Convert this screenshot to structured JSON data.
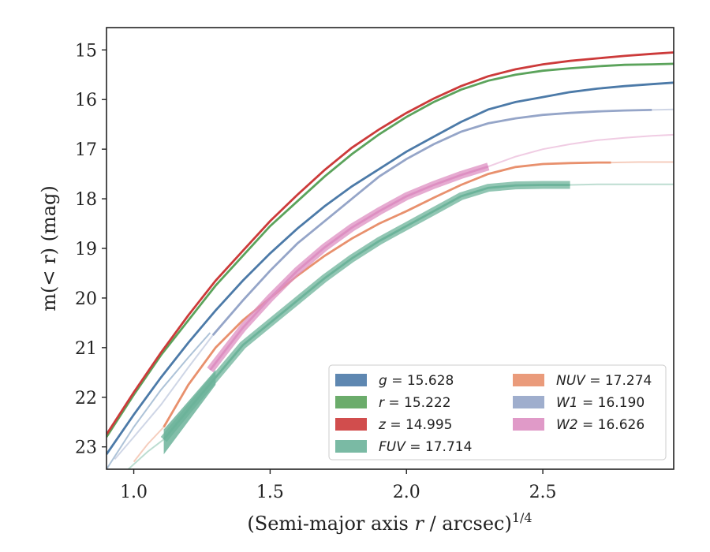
{
  "chart_data": {
    "type": "line",
    "title": "",
    "xlabel": "(Semi-major axis r / arcsec)",
    "xlabel_var": "r",
    "xlabel_sup": "1/4",
    "ylabel": "m(< r) (mag)",
    "xlim": [
      0.9,
      2.98
    ],
    "ylim": [
      23.45,
      14.55
    ],
    "y_inverted": true,
    "xticks": [
      "1.0",
      "1.5",
      "2.0",
      "2.5"
    ],
    "xtick_values": [
      1.0,
      1.5,
      2.0,
      2.5
    ],
    "yticks": [
      "15",
      "16",
      "17",
      "18",
      "19",
      "20",
      "21",
      "22",
      "23"
    ],
    "ytick_values": [
      15,
      16,
      17,
      18,
      19,
      20,
      21,
      22,
      23
    ],
    "grid": false,
    "legend_position": "lower-right",
    "series": [
      {
        "name": "g = 15.628",
        "var": "g",
        "value": "15.628",
        "color": "#4c7aa8",
        "points": [
          [
            0.9,
            23.15
          ],
          [
            1.0,
            22.35
          ],
          [
            1.1,
            21.6
          ],
          [
            1.2,
            20.9
          ],
          [
            1.3,
            20.25
          ],
          [
            1.4,
            19.65
          ],
          [
            1.5,
            19.1
          ],
          [
            1.6,
            18.6
          ],
          [
            1.7,
            18.15
          ],
          [
            1.8,
            17.75
          ],
          [
            1.9,
            17.4
          ],
          [
            2.0,
            17.05
          ],
          [
            2.1,
            16.75
          ],
          [
            2.2,
            16.45
          ],
          [
            2.3,
            16.2
          ],
          [
            2.4,
            16.05
          ],
          [
            2.5,
            15.95
          ],
          [
            2.6,
            15.85
          ],
          [
            2.7,
            15.78
          ],
          [
            2.8,
            15.73
          ],
          [
            2.9,
            15.69
          ],
          [
            2.98,
            15.66
          ]
        ],
        "faint": [
          [
            0.9,
            23.45
          ],
          [
            1.0,
            22.6
          ],
          [
            1.1,
            21.85
          ],
          [
            1.2,
            21.2
          ],
          [
            1.28,
            20.7
          ]
        ]
      },
      {
        "name": "r = 15.222",
        "var": "r",
        "value": "15.222",
        "color": "#5ba35b",
        "points": [
          [
            0.9,
            22.8
          ],
          [
            1.0,
            21.95
          ],
          [
            1.1,
            21.15
          ],
          [
            1.2,
            20.45
          ],
          [
            1.3,
            19.75
          ],
          [
            1.4,
            19.15
          ],
          [
            1.5,
            18.55
          ],
          [
            1.6,
            18.05
          ],
          [
            1.7,
            17.55
          ],
          [
            1.8,
            17.1
          ],
          [
            1.9,
            16.7
          ],
          [
            2.0,
            16.35
          ],
          [
            2.1,
            16.05
          ],
          [
            2.2,
            15.8
          ],
          [
            2.3,
            15.62
          ],
          [
            2.4,
            15.5
          ],
          [
            2.5,
            15.42
          ],
          [
            2.6,
            15.37
          ],
          [
            2.7,
            15.33
          ],
          [
            2.8,
            15.3
          ],
          [
            2.9,
            15.29
          ],
          [
            2.98,
            15.28
          ]
        ]
      },
      {
        "name": "z = 14.995",
        "var": "z",
        "value": "14.995",
        "color": "#cc3a3a",
        "points": [
          [
            0.9,
            22.75
          ],
          [
            1.0,
            21.9
          ],
          [
            1.1,
            21.1
          ],
          [
            1.2,
            20.35
          ],
          [
            1.3,
            19.65
          ],
          [
            1.4,
            19.05
          ],
          [
            1.5,
            18.45
          ],
          [
            1.6,
            17.92
          ],
          [
            1.7,
            17.42
          ],
          [
            1.8,
            16.97
          ],
          [
            1.9,
            16.6
          ],
          [
            2.0,
            16.27
          ],
          [
            2.1,
            15.98
          ],
          [
            2.2,
            15.73
          ],
          [
            2.3,
            15.53
          ],
          [
            2.4,
            15.39
          ],
          [
            2.5,
            15.29
          ],
          [
            2.6,
            15.22
          ],
          [
            2.7,
            15.17
          ],
          [
            2.8,
            15.12
          ],
          [
            2.9,
            15.08
          ],
          [
            2.98,
            15.05
          ]
        ]
      },
      {
        "name": "FUV = 17.714",
        "var": "FUV",
        "value": "17.714",
        "color": "#6cb39a",
        "points": [
          [
            1.11,
            22.85
          ],
          [
            1.2,
            22.25
          ],
          [
            1.3,
            21.6
          ],
          [
            1.4,
            20.95
          ],
          [
            1.5,
            20.5
          ],
          [
            1.6,
            20.05
          ],
          [
            1.7,
            19.6
          ],
          [
            1.8,
            19.2
          ],
          [
            1.9,
            18.85
          ],
          [
            2.0,
            18.55
          ],
          [
            2.1,
            18.25
          ],
          [
            2.2,
            17.95
          ],
          [
            2.3,
            17.78
          ],
          [
            2.4,
            17.73
          ],
          [
            2.5,
            17.72
          ],
          [
            2.6,
            17.72
          ]
        ],
        "faint": [
          [
            2.6,
            17.72
          ],
          [
            2.7,
            17.71
          ],
          [
            2.8,
            17.71
          ],
          [
            2.9,
            17.71
          ],
          [
            2.98,
            17.71
          ]
        ],
        "faint_left": [
          [
            0.98,
            23.45
          ],
          [
            1.05,
            23.1
          ],
          [
            1.11,
            22.85
          ]
        ],
        "band": true
      },
      {
        "name": "NUV = 17.274",
        "var": "NUV",
        "value": "17.274",
        "color": "#e8906d",
        "points": [
          [
            1.11,
            22.6
          ],
          [
            1.2,
            21.75
          ],
          [
            1.3,
            21.0
          ],
          [
            1.4,
            20.45
          ],
          [
            1.5,
            20.0
          ],
          [
            1.6,
            19.55
          ],
          [
            1.7,
            19.15
          ],
          [
            1.8,
            18.8
          ],
          [
            1.9,
            18.5
          ],
          [
            2.0,
            18.25
          ],
          [
            2.1,
            17.98
          ],
          [
            2.2,
            17.72
          ],
          [
            2.3,
            17.5
          ],
          [
            2.4,
            17.36
          ],
          [
            2.5,
            17.3
          ],
          [
            2.6,
            17.28
          ],
          [
            2.7,
            17.27
          ],
          [
            2.75,
            17.27
          ]
        ],
        "faint": [
          [
            2.75,
            17.27
          ],
          [
            2.85,
            17.26
          ],
          [
            2.98,
            17.26
          ]
        ],
        "faint_left": [
          [
            1.0,
            23.3
          ],
          [
            1.05,
            22.95
          ],
          [
            1.11,
            22.6
          ]
        ]
      },
      {
        "name": "W1 = 16.190",
        "var": "W1",
        "value": "16.190",
        "color": "#95a5c8",
        "points": [
          [
            1.29,
            20.75
          ],
          [
            1.4,
            20.05
          ],
          [
            1.5,
            19.45
          ],
          [
            1.6,
            18.9
          ],
          [
            1.7,
            18.45
          ],
          [
            1.8,
            18.0
          ],
          [
            1.9,
            17.55
          ],
          [
            2.0,
            17.2
          ],
          [
            2.1,
            16.9
          ],
          [
            2.2,
            16.65
          ],
          [
            2.3,
            16.48
          ],
          [
            2.4,
            16.38
          ],
          [
            2.5,
            16.31
          ],
          [
            2.6,
            16.27
          ],
          [
            2.7,
            16.24
          ],
          [
            2.8,
            16.22
          ],
          [
            2.9,
            16.21
          ]
        ],
        "faint": [
          [
            2.9,
            16.21
          ],
          [
            2.98,
            16.2
          ]
        ],
        "faint_left": [
          [
            0.93,
            23.25
          ],
          [
            1.0,
            22.8
          ],
          [
            1.1,
            22.15
          ],
          [
            1.2,
            21.4
          ],
          [
            1.29,
            20.75
          ]
        ]
      },
      {
        "name": "W2 = 16.626",
        "var": "W2",
        "value": "16.626",
        "color": "#dd8fc2",
        "points": [
          [
            1.28,
            21.45
          ],
          [
            1.4,
            20.6
          ],
          [
            1.5,
            20.0
          ],
          [
            1.6,
            19.45
          ],
          [
            1.7,
            18.98
          ],
          [
            1.8,
            18.58
          ],
          [
            1.9,
            18.25
          ],
          [
            2.0,
            17.95
          ],
          [
            2.1,
            17.72
          ],
          [
            2.2,
            17.52
          ],
          [
            2.3,
            17.35
          ]
        ],
        "faint": [
          [
            2.3,
            17.35
          ],
          [
            2.4,
            17.15
          ],
          [
            2.5,
            17.0
          ],
          [
            2.6,
            16.9
          ],
          [
            2.7,
            16.82
          ],
          [
            2.8,
            16.77
          ],
          [
            2.9,
            16.73
          ],
          [
            2.98,
            16.71
          ]
        ],
        "band": true
      }
    ]
  }
}
